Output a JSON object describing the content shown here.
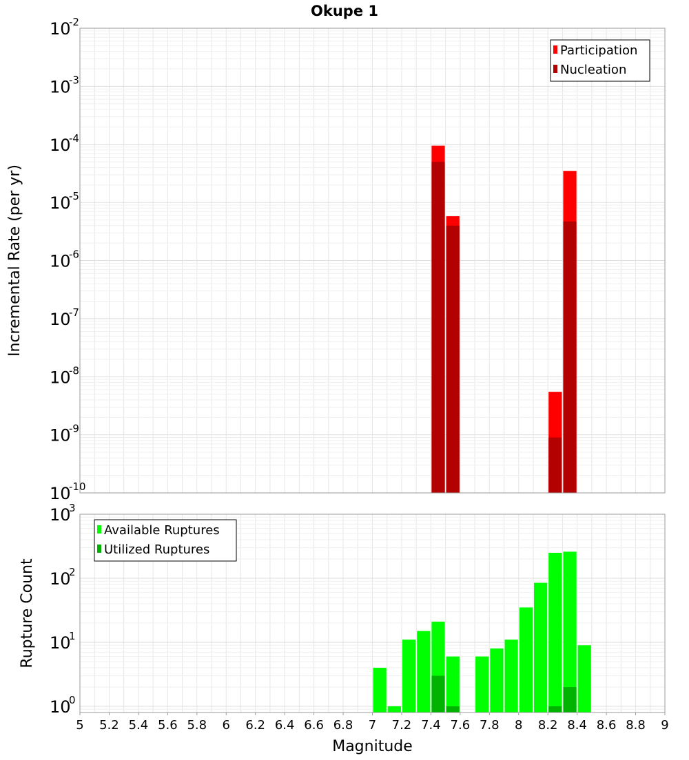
{
  "chart_data": [
    {
      "type": "bar",
      "title": "Okupe 1",
      "xlabel": "Magnitude",
      "ylabel": "Incremental Rate (per yr)",
      "yscale": "log",
      "ylim": [
        1e-10,
        0.01
      ],
      "xlim": [
        5,
        9
      ],
      "bin_width": 0.1,
      "grid": true,
      "legend_position": "top-right",
      "series": [
        {
          "name": "Participation",
          "color": "#ff0000",
          "points": [
            {
              "x": 7.45,
              "y": 9.5e-05
            },
            {
              "x": 7.55,
              "y": 5.8e-06
            },
            {
              "x": 8.25,
              "y": 5.5e-09
            },
            {
              "x": 8.35,
              "y": 3.5e-05
            }
          ]
        },
        {
          "name": "Nucleation",
          "color": "#b30000",
          "points": [
            {
              "x": 7.45,
              "y": 5e-05
            },
            {
              "x": 7.55,
              "y": 4e-06
            },
            {
              "x": 8.25,
              "y": 9e-10
            },
            {
              "x": 8.35,
              "y": 4.7e-06
            }
          ]
        }
      ]
    },
    {
      "type": "bar",
      "xlabel": "Magnitude",
      "ylabel": "Rupture Count",
      "yscale": "log",
      "ylim": [
        0.8,
        1000
      ],
      "xlim": [
        5,
        9
      ],
      "xticks": [
        "5",
        "5.2",
        "5.4",
        "5.6",
        "5.8",
        "6",
        "6.2",
        "6.4",
        "6.6",
        "6.8",
        "7",
        "7.2",
        "7.4",
        "7.6",
        "7.8",
        "8",
        "8.2",
        "8.4",
        "8.6",
        "8.8",
        "9"
      ],
      "bin_width": 0.1,
      "grid": true,
      "legend_position": "top-left",
      "series": [
        {
          "name": "Available Ruptures",
          "color": "#00ff00",
          "points": [
            {
              "x": 7.05,
              "y": 4
            },
            {
              "x": 7.15,
              "y": 1
            },
            {
              "x": 7.25,
              "y": 11
            },
            {
              "x": 7.35,
              "y": 15
            },
            {
              "x": 7.45,
              "y": 21
            },
            {
              "x": 7.55,
              "y": 6
            },
            {
              "x": 7.75,
              "y": 6
            },
            {
              "x": 7.85,
              "y": 8
            },
            {
              "x": 7.95,
              "y": 11
            },
            {
              "x": 8.05,
              "y": 35
            },
            {
              "x": 8.15,
              "y": 85
            },
            {
              "x": 8.25,
              "y": 250
            },
            {
              "x": 8.35,
              "y": 260
            },
            {
              "x": 8.45,
              "y": 9
            }
          ]
        },
        {
          "name": "Utilized Ruptures",
          "color": "#00b300",
          "points": [
            {
              "x": 7.45,
              "y": 3
            },
            {
              "x": 7.55,
              "y": 1
            },
            {
              "x": 8.25,
              "y": 1
            },
            {
              "x": 8.35,
              "y": 2
            }
          ]
        }
      ]
    }
  ]
}
